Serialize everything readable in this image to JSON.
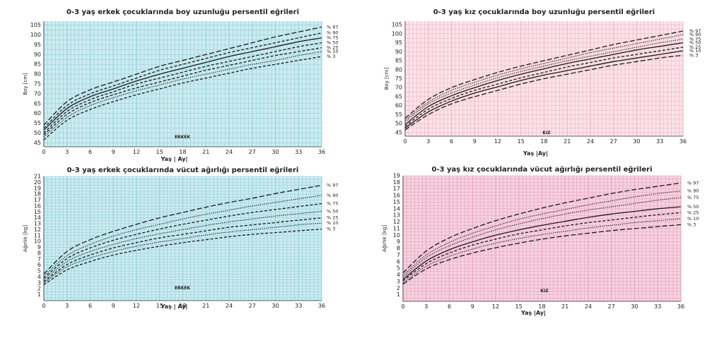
{
  "chart_data": [
    {
      "type": "line",
      "title": "0-3 yaş erkek çocuklarında boy uzunluğu persentil eğrileri",
      "xlabel": "Yaş | Ay|",
      "ylabel": "Boy [cm]",
      "note": "ERKEK",
      "xlim": [
        0,
        36
      ],
      "ylim": [
        43,
        107
      ],
      "xticks": [
        0,
        3,
        6,
        9,
        12,
        15,
        18,
        21,
        24,
        27,
        30,
        33,
        36
      ],
      "yticks": [
        45,
        50,
        55,
        60,
        65,
        70,
        75,
        80,
        85,
        90,
        95,
        100,
        105
      ],
      "grid": true,
      "background": "#cdebf0",
      "grid_color": "#8fd0dc",
      "x": [
        0,
        3,
        6,
        9,
        12,
        15,
        18,
        21,
        24,
        27,
        30,
        33,
        36
      ],
      "series": [
        {
          "name": "% 97",
          "dash": "long",
          "values": [
            54,
            66,
            72,
            76,
            80,
            84,
            87,
            90,
            93,
            96,
            99,
            101.5,
            104
          ]
        },
        {
          "name": "% 90",
          "dash": "short",
          "values": [
            52.5,
            64,
            70,
            74,
            78,
            82,
            85,
            88,
            91,
            93.5,
            96,
            98.5,
            101
          ]
        },
        {
          "name": "% 75",
          "dash": "solid",
          "values": [
            51.5,
            62.5,
            68.5,
            72.5,
            76.5,
            80,
            83,
            86,
            89,
            91.5,
            94,
            96.5,
            98.5
          ]
        },
        {
          "name": "% 50",
          "dash": "short",
          "values": [
            50,
            61,
            67,
            71,
            75,
            78,
            81,
            84,
            86.5,
            89,
            91.5,
            94,
            96
          ]
        },
        {
          "name": "% 25",
          "dash": "short",
          "values": [
            49,
            59.5,
            65.5,
            69.5,
            73,
            76,
            79,
            82,
            84.5,
            87,
            89.5,
            91.5,
            93.5
          ]
        },
        {
          "name": "% 10",
          "dash": "dot",
          "values": [
            48,
            58,
            64,
            68,
            71.5,
            74.5,
            77.5,
            80,
            82.5,
            85,
            87,
            89.5,
            91.5
          ]
        },
        {
          "name": "% 3",
          "dash": "short",
          "values": [
            46.5,
            56.5,
            62,
            66,
            69.5,
            72.5,
            75.5,
            78,
            80.5,
            83,
            85,
            87,
            89
          ]
        }
      ]
    },
    {
      "type": "line",
      "title": "0-3 yaş kız çocuklarında boy uzunluğu persentil eğrileri",
      "xlabel": "Yaş |Ay|",
      "ylabel": "Boy [cm]",
      "note": "KIZ",
      "xlim": [
        0,
        36
      ],
      "ylim": [
        43,
        107
      ],
      "xticks": [
        0,
        3,
        6,
        9,
        12,
        15,
        18,
        21,
        24,
        27,
        30,
        33,
        36
      ],
      "yticks": [
        45,
        50,
        55,
        60,
        65,
        70,
        75,
        80,
        85,
        90,
        95,
        100,
        105
      ],
      "grid": true,
      "background": "#fbe3ea",
      "grid_color": "#f0b4c6",
      "x": [
        0,
        3,
        6,
        9,
        12,
        15,
        18,
        21,
        24,
        27,
        30,
        33,
        36
      ],
      "series": [
        {
          "name": "% 97",
          "dash": "long",
          "values": [
            53,
            63.5,
            70,
            74.5,
            78.5,
            82,
            85,
            88,
            91,
            94,
            96.5,
            99,
            101.5
          ]
        },
        {
          "name": "% 90",
          "dash": "dot",
          "values": [
            52,
            62,
            68.5,
            73,
            77,
            80.5,
            83.5,
            86.5,
            89.5,
            92,
            94.5,
            97,
            99.5
          ]
        },
        {
          "name": "% 75",
          "dash": "dot",
          "values": [
            51,
            61,
            67,
            71.5,
            75.5,
            79,
            82,
            85,
            87.5,
            90,
            92.5,
            95,
            97
          ]
        },
        {
          "name": "% 50",
          "dash": "solid",
          "values": [
            49.5,
            59.5,
            65.5,
            70,
            74,
            77.5,
            80.5,
            83.5,
            86,
            88.5,
            91,
            93,
            95
          ]
        },
        {
          "name": "% 25",
          "dash": "short",
          "values": [
            48.5,
            58,
            64,
            68.5,
            72,
            75.5,
            78.5,
            81.5,
            84,
            86.5,
            88.5,
            90.5,
            92.5
          ]
        },
        {
          "name": "% 10",
          "dash": "solid",
          "values": [
            47.5,
            56.5,
            62.5,
            67,
            70.5,
            74,
            77,
            79.5,
            82,
            84.5,
            86.5,
            88.5,
            90.5
          ]
        },
        {
          "name": "% 3",
          "dash": "long",
          "values": [
            46.5,
            55,
            61,
            65,
            68.5,
            72,
            75,
            77.5,
            80,
            82.5,
            84.5,
            86.5,
            88
          ]
        }
      ]
    },
    {
      "type": "line",
      "title": "0-3 yaş erkek çocuklarında vücut ağırlığı persentil eğrileri",
      "xlabel": "Yaş | Ay|",
      "ylabel": "Ağırlık [kg]",
      "note": "ERKEK",
      "xlim": [
        0,
        36
      ],
      "ylim": [
        0,
        21
      ],
      "xticks": [
        0,
        3,
        6,
        9,
        12,
        15,
        18,
        21,
        24,
        27,
        30,
        33,
        36
      ],
      "yticks": [
        1,
        2,
        3,
        4,
        5,
        6,
        7,
        8,
        9,
        10,
        11,
        12,
        13,
        14,
        15,
        16,
        17,
        18,
        19,
        20,
        21
      ],
      "grid": true,
      "background": "#cdebf0",
      "grid_color": "#8fd0dc",
      "x": [
        0,
        3,
        6,
        9,
        12,
        15,
        18,
        21,
        24,
        27,
        30,
        33,
        36
      ],
      "series": [
        {
          "name": "% 97",
          "dash": "long",
          "values": [
            4.5,
            8.3,
            10.3,
            11.7,
            12.9,
            14,
            14.9,
            15.8,
            16.6,
            17.3,
            18.1,
            18.8,
            19.5
          ]
        },
        {
          "name": "% 90",
          "dash": "dot",
          "values": [
            4.1,
            7.6,
            9.5,
            10.9,
            12,
            12.9,
            13.8,
            14.6,
            15.3,
            16,
            16.6,
            17.2,
            17.8
          ]
        },
        {
          "name": "% 75",
          "dash": "short",
          "values": [
            3.8,
            7.1,
            8.9,
            10.2,
            11.2,
            12.1,
            12.9,
            13.6,
            14.3,
            14.9,
            15.4,
            15.9,
            16.4
          ]
        },
        {
          "name": "% 50",
          "dash": "dot",
          "values": [
            3.5,
            6.6,
            8.3,
            9.5,
            10.5,
            11.3,
            12,
            12.7,
            13.3,
            13.8,
            14.3,
            14.7,
            15.1
          ]
        },
        {
          "name": "% 25",
          "dash": "short",
          "values": [
            3.2,
            6.1,
            7.7,
            8.9,
            9.8,
            10.6,
            11.2,
            11.8,
            12.4,
            12.8,
            13.2,
            13.6,
            14
          ]
        },
        {
          "name": "% 10",
          "dash": "dot",
          "values": [
            3,
            5.7,
            7.2,
            8.3,
            9.2,
            9.9,
            10.5,
            11.1,
            11.6,
            12,
            12.4,
            12.8,
            13.1
          ]
        },
        {
          "name": "% 3",
          "dash": "short",
          "values": [
            2.7,
            5.2,
            6.6,
            7.7,
            8.5,
            9.2,
            9.8,
            10.3,
            10.8,
            11.2,
            11.5,
            11.8,
            12.1
          ]
        }
      ]
    },
    {
      "type": "line",
      "title": "0-3 yaş kız çocuklarında vücut ağırlığı persentil eğrileri",
      "xlabel": "Yaş |Ay|",
      "ylabel": "Ağırlık [kg]",
      "note": "KIZ",
      "xlim": [
        0,
        36
      ],
      "ylim": [
        0,
        19
      ],
      "xticks": [
        0,
        3,
        6,
        9,
        12,
        15,
        18,
        21,
        24,
        27,
        30,
        33,
        36
      ],
      "yticks": [
        1,
        2,
        3,
        4,
        5,
        6,
        7,
        8,
        9,
        10,
        11,
        12,
        13,
        14,
        15,
        16,
        17,
        18,
        19
      ],
      "grid": true,
      "background": "#f6d2e0",
      "grid_color": "#e7a2bb",
      "x": [
        0,
        3,
        6,
        9,
        12,
        15,
        18,
        21,
        24,
        27,
        30,
        33,
        36
      ],
      "series": [
        {
          "name": "% 97",
          "dash": "long",
          "values": [
            4.3,
            7.6,
            9.6,
            11,
            12.2,
            13.2,
            14.1,
            14.9,
            15.6,
            16.3,
            16.9,
            17.4,
            17.9
          ]
        },
        {
          "name": "% 90",
          "dash": "dot",
          "values": [
            3.9,
            7,
            8.9,
            10.3,
            11.4,
            12.4,
            13.2,
            13.9,
            14.6,
            15.2,
            15.8,
            16.3,
            16.7
          ]
        },
        {
          "name": "% 75",
          "dash": "dot",
          "values": [
            3.6,
            6.6,
            8.4,
            9.7,
            10.8,
            11.7,
            12.5,
            13.2,
            13.8,
            14.3,
            14.8,
            15.3,
            15.7
          ]
        },
        {
          "name": "% 50",
          "dash": "solid",
          "values": [
            3.3,
            6.1,
            7.8,
            9,
            10,
            10.8,
            11.5,
            12.1,
            12.7,
            13.2,
            13.6,
            14,
            14.3
          ]
        },
        {
          "name": "% 25",
          "dash": "short",
          "values": [
            3.1,
            5.7,
            7.3,
            8.5,
            9.4,
            10.2,
            10.8,
            11.4,
            11.9,
            12.3,
            12.7,
            13.1,
            13.4
          ]
        },
        {
          "name": "% 10",
          "dash": "dot",
          "values": [
            2.8,
            5.3,
            6.8,
            7.9,
            8.8,
            9.5,
            10.1,
            10.6,
            11.1,
            11.5,
            11.9,
            12.2,
            12.5
          ]
        },
        {
          "name": "% 3",
          "dash": "long",
          "values": [
            2.6,
            4.9,
            6.3,
            7.3,
            8.1,
            8.8,
            9.4,
            9.9,
            10.3,
            10.7,
            11,
            11.3,
            11.6
          ]
        }
      ]
    }
  ]
}
